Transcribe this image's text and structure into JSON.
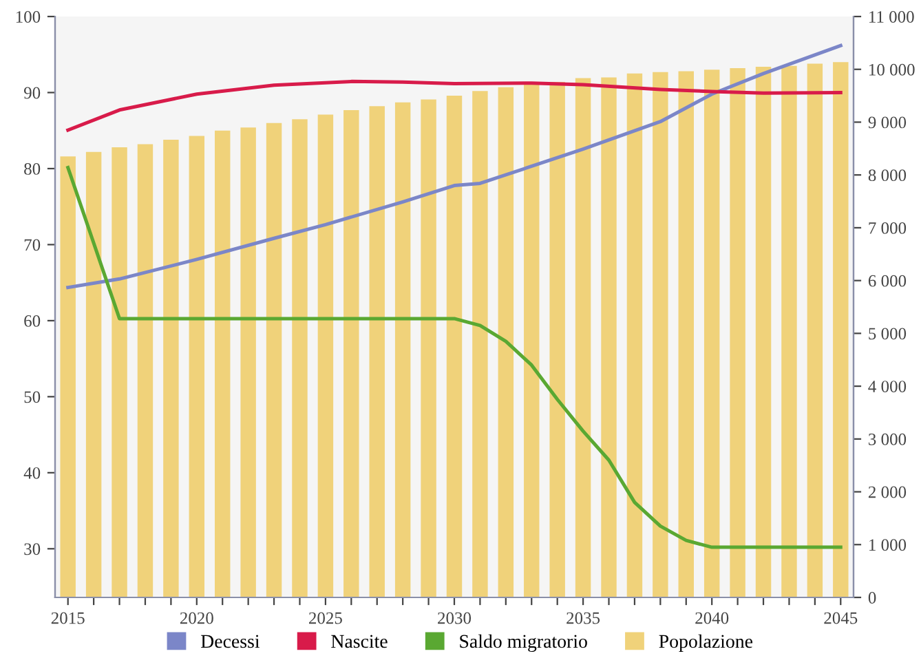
{
  "chart_data": {
    "type": "bar",
    "x": [
      2015,
      2016,
      2017,
      2018,
      2019,
      2020,
      2021,
      2022,
      2023,
      2024,
      2025,
      2026,
      2027,
      2028,
      2029,
      2030,
      2031,
      2032,
      2033,
      2034,
      2035,
      2036,
      2037,
      2038,
      2039,
      2040,
      2041,
      2042,
      2043,
      2044,
      2045
    ],
    "series": [
      {
        "name": "Decessi",
        "type": "line",
        "axis": "y2",
        "color": "#7b86c8",
        "x": [
          2015,
          2017,
          2020,
          2023,
          2025,
          2028,
          2030,
          2031,
          2035,
          2038,
          2040,
          2042,
          2045
        ],
        "values": [
          5870,
          6030,
          6400,
          6800,
          7060,
          7490,
          7800,
          7840,
          8490,
          9010,
          9530,
          9920,
          10450
        ]
      },
      {
        "name": "Nascite",
        "type": "line",
        "axis": "y2",
        "color": "#d81b4a",
        "x": [
          2015,
          2017,
          2020,
          2023,
          2026,
          2028,
          2030,
          2033,
          2035,
          2038,
          2040,
          2042,
          2045
        ],
        "values": [
          8850,
          9230,
          9530,
          9700,
          9770,
          9760,
          9730,
          9740,
          9710,
          9620,
          9580,
          9550,
          9560
        ]
      },
      {
        "name": "Saldo migratorio",
        "type": "line",
        "axis": "y2",
        "color": "#5aa832",
        "x": [
          2015,
          2017,
          2030,
          2031,
          2032,
          2033,
          2034,
          2035,
          2036,
          2037,
          2038,
          2039,
          2040,
          2045
        ],
        "values": [
          8140,
          5280,
          5280,
          5150,
          4850,
          4400,
          3750,
          3150,
          2600,
          1800,
          1350,
          1080,
          950,
          950
        ]
      },
      {
        "name": "Popolazione",
        "color": "#f0d27a",
        "values": [
          81.6,
          82.2,
          82.8,
          83.2,
          83.8,
          84.3,
          85.0,
          85.4,
          86.0,
          86.5,
          87.1,
          87.7,
          88.2,
          88.7,
          89.1,
          89.6,
          90.2,
          90.7,
          91.1,
          91.4,
          91.9,
          92.0,
          92.5,
          92.7,
          92.8,
          93.0,
          93.2,
          93.4,
          93.5,
          93.8,
          94.0
        ]
      }
    ],
    "xlim": [
      2014.5,
      2045.5
    ],
    "xticks": [
      2015,
      {
        "value": 2016,
        "label": null
      },
      {
        "value": 2017,
        "label": null
      },
      {
        "value": 2018,
        "label": null
      },
      {
        "value": 2019,
        "label": null
      },
      2020,
      {
        "value": 2021,
        "label": null
      },
      {
        "value": 2022,
        "label": null
      },
      {
        "value": 2023,
        "label": null
      },
      {
        "value": 2024,
        "label": null
      },
      2025,
      {
        "value": 2026,
        "label": null
      },
      {
        "value": 2027,
        "label": null
      },
      {
        "value": 2028,
        "label": null
      },
      {
        "value": 2029,
        "label": null
      },
      2030,
      {
        "value": 2031,
        "label": null
      },
      {
        "value": 2032,
        "label": null
      },
      {
        "value": 2033,
        "label": null
      },
      {
        "value": 2034,
        "label": null
      },
      2035,
      {
        "value": 2036,
        "label": null
      },
      {
        "value": 2037,
        "label": null
      },
      {
        "value": 2038,
        "label": null
      },
      {
        "value": 2039,
        "label": null
      },
      2040,
      {
        "value": 2041,
        "label": null
      },
      {
        "value": 2042,
        "label": null
      },
      {
        "value": 2043,
        "label": null
      },
      {
        "value": 2044,
        "label": null
      },
      2045
    ],
    "ylim": [
      23.6,
      100
    ],
    "yticks": [
      30,
      40,
      50,
      60,
      70,
      80,
      90,
      100
    ],
    "y2lim": [
      0,
      11000
    ],
    "y2ticks": [
      0,
      {
        "value": 1000,
        "label": "1 000"
      },
      {
        "value": 2000,
        "label": "2 000"
      },
      {
        "value": 3000,
        "label": "3 000"
      },
      {
        "value": 4000,
        "label": "4 000"
      },
      {
        "value": 5000,
        "label": "5 000"
      },
      {
        "value": 6000,
        "label": "6 000"
      },
      {
        "value": 7000,
        "label": "7 000"
      },
      {
        "value": 8000,
        "label": "8 000"
      },
      {
        "value": 9000,
        "label": "9 000"
      },
      {
        "value": 10000,
        "label": "10 000"
      },
      {
        "value": 11000,
        "label": "11 000"
      }
    ],
    "grid": false,
    "legend": "bottom",
    "line_style": "solid",
    "marker": "none"
  }
}
